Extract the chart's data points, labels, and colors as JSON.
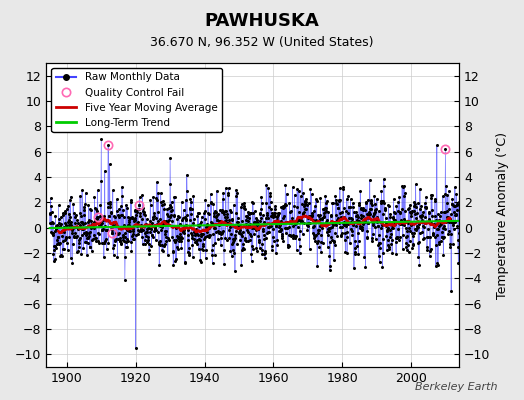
{
  "title": "PAWHUSKA",
  "subtitle": "36.670 N, 96.352 W (United States)",
  "ylabel": "Temperature Anomaly (°C)",
  "credit": "Berkeley Earth",
  "year_start": 1895,
  "year_end": 2013,
  "ylim": [
    -11,
    13
  ],
  "yticks": [
    -10,
    -8,
    -6,
    -4,
    -2,
    0,
    2,
    4,
    6,
    8,
    10,
    12
  ],
  "xticks": [
    1900,
    1920,
    1940,
    1960,
    1980,
    2000
  ],
  "bg_color": "#e8e8e8",
  "plot_bg_color": "#ffffff",
  "raw_line_color": "#4444ff",
  "raw_dot_color": "#000000",
  "ma_color": "#cc0000",
  "trend_color": "#00cc00",
  "qc_color": "#ff69b4",
  "seed": 42
}
